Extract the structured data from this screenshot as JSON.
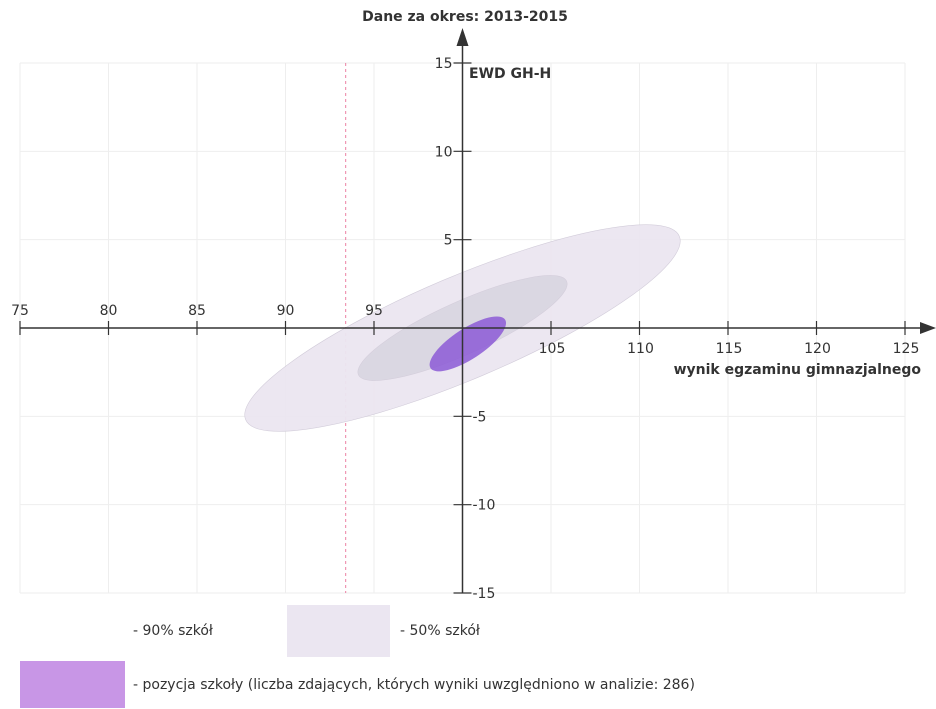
{
  "chart_data": {
    "type": "scatter",
    "title": "Dane za okres: 2013-2015",
    "xlabel": "wynik egzaminu gimnazjalnego",
    "ylabel": "EWD GH-H",
    "xlim": [
      75,
      125
    ],
    "ylim": [
      -15,
      15
    ],
    "x_ticks": [
      75,
      80,
      85,
      90,
      95,
      105,
      110,
      115,
      120,
      125
    ],
    "y_ticks": [
      15,
      10,
      5,
      -5,
      -10,
      -15
    ],
    "grid": true,
    "series": [
      {
        "name": "90% szkół",
        "shape": "ellipse",
        "center": [
          100,
          0
        ],
        "x_extent": [
          87.5,
          112.5
        ],
        "y_extent": [
          -5.3,
          5.3
        ],
        "color": "#ebe6f1"
      },
      {
        "name": "50% szkół",
        "shape": "ellipse",
        "center": [
          100,
          0
        ],
        "x_extent": [
          94,
          106
        ],
        "y_extent": [
          -2.7,
          2.7
        ],
        "color": "#d8d5e0"
      },
      {
        "name": "pozycja szkoły",
        "shape": "ellipse",
        "center": [
          100.3,
          -0.9
        ],
        "x_extent": [
          98,
          102.3
        ],
        "y_extent": [
          -2.3,
          0.5
        ],
        "color": "#8c5ad6"
      }
    ],
    "reference_line_x": 93.4
  },
  "legend": {
    "label_90": "- 90% szkół",
    "label_50": "- 50% szkół",
    "label_school": "- pozycja szkoły (liczba zdających, których wyniki uwzględniono w analizie: 286)"
  },
  "colors": {
    "ellipse90": "#ebe6f1",
    "ellipse50": "#d8d5e0",
    "school": "#8c5ad6",
    "legendSchool": "#c896e6",
    "axis": "#333333",
    "grid": "#eeeeee",
    "refline": "#e34d7d"
  }
}
